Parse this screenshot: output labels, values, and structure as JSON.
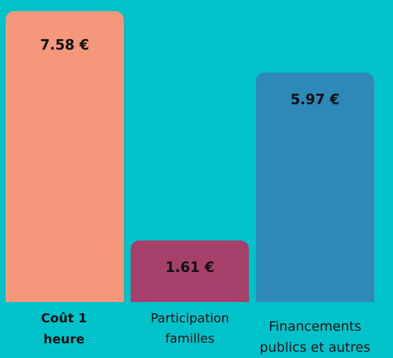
{
  "chart_data": {
    "type": "bar",
    "categories": [
      "Coût 1 heure",
      "Participation familles",
      "Financements publics et autres"
    ],
    "values": [
      7.58,
      1.61,
      5.97
    ],
    "value_labels": [
      "7.58 €",
      "1.61 €",
      "5.97 €"
    ],
    "colors": [
      "#f4977a",
      "#a63f6a",
      "#2e88b8"
    ]
  }
}
